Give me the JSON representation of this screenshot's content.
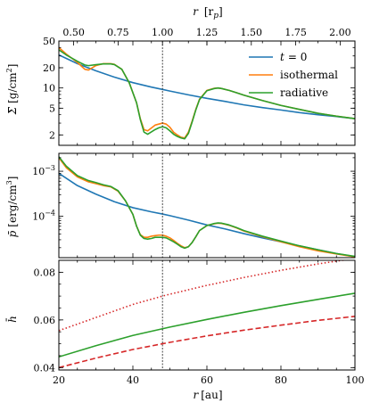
{
  "chart_data": {
    "type": "line",
    "top_axis": {
      "label": "r [r_p]",
      "label_main": "r",
      "label_unit": "[r",
      "label_sub": "p",
      "label_end": "]",
      "ticks": [
        0.5,
        0.75,
        1.0,
        1.25,
        1.5,
        1.75,
        2.0
      ],
      "tick_labels": [
        "0.50",
        "0.75",
        "1.00",
        "1.25",
        "1.50",
        "1.75",
        "2.00"
      ]
    },
    "x_axis": {
      "label": "r [au]",
      "xlim": [
        20,
        100
      ],
      "ticks": [
        20,
        40,
        60,
        80,
        100
      ],
      "tick_labels": [
        "20",
        "40",
        "60",
        "80",
        "100"
      ]
    },
    "planet_line_r_au": 48,
    "legend": {
      "placement": "top-right",
      "entries": [
        {
          "label": "t = 0",
          "label_italic": "t",
          "label_rest": "= 0",
          "color": "#1f77b4"
        },
        {
          "label": "isothermal",
          "color": "#ff7f0e"
        },
        {
          "label": "radiative",
          "color": "#2ca02c"
        }
      ]
    },
    "panels": [
      {
        "id": "sigma",
        "ylabel": "Σ̄ [g/cm²]",
        "ylabel_unit": "[g/cm",
        "ylabel_sup": "2",
        "yscale": "log",
        "ylim": [
          1.4,
          50
        ],
        "ticks": [
          2,
          5,
          10,
          20,
          50
        ],
        "tick_labels": [
          "2",
          "5",
          "10",
          "20",
          "50"
        ],
        "series": [
          {
            "name": "t = 0",
            "color": "#1f77b4",
            "dash": "solid",
            "x": [
              20,
              25,
              30,
              35,
              40,
              45,
              48,
              50,
              55,
              60,
              65,
              70,
              75,
              80,
              85,
              90,
              95,
              100
            ],
            "y": [
              31,
              23,
              18,
              14.5,
              12,
              10.3,
              9.5,
              9,
              7.9,
              7,
              6.3,
              5.6,
              5.1,
              4.7,
              4.3,
              4,
              3.75,
              3.5
            ]
          },
          {
            "name": "isothermal",
            "color": "#ff7f0e",
            "dash": "solid",
            "x": [
              20,
              22,
              25,
              27,
              28,
              30,
              32,
              34,
              35,
              37,
              39,
              41,
              42,
              43,
              44,
              46,
              47,
              48,
              49,
              50,
              51,
              52,
              53,
              54,
              55,
              56,
              57,
              58,
              60,
              62,
              63,
              64,
              66,
              68,
              70,
              75,
              80,
              85,
              90,
              95,
              100
            ],
            "y": [
              40,
              32,
              24,
              19,
              18.5,
              21.5,
              23,
              23,
              22.5,
              19,
              12,
              6,
              3.5,
              2.4,
              2.3,
              2.8,
              2.9,
              3.0,
              2.9,
              2.6,
              2.2,
              2,
              1.85,
              1.8,
              2.2,
              3.2,
              4.8,
              6.8,
              9.2,
              9.9,
              10,
              9.8,
              9.2,
              8.5,
              7.8,
              6.5,
              5.5,
              4.8,
              4.2,
              3.8,
              3.5
            ]
          },
          {
            "name": "radiative",
            "color": "#2ca02c",
            "dash": "solid",
            "x": [
              20,
              22,
              25,
              27,
              28,
              30,
              32,
              34,
              35,
              37,
              39,
              41,
              42,
              43,
              44,
              46,
              47,
              48,
              49,
              50,
              51,
              52,
              53,
              54,
              55,
              56,
              57,
              58,
              60,
              62,
              63,
              64,
              66,
              68,
              70,
              75,
              80,
              85,
              90,
              95,
              100
            ],
            "y": [
              37,
              31,
              25,
              22,
              21.5,
              22.2,
              22.8,
              22.8,
              22.3,
              19,
              12,
              6,
              3.4,
              2.2,
              2.05,
              2.4,
              2.55,
              2.65,
              2.55,
              2.3,
              2.05,
              1.9,
              1.8,
              1.75,
              2.1,
              3.1,
              4.7,
              6.7,
              9.1,
              9.8,
              10,
              9.8,
              9.2,
              8.5,
              7.8,
              6.5,
              5.5,
              4.8,
              4.2,
              3.8,
              3.5
            ]
          }
        ]
      },
      {
        "id": "pressure",
        "ylabel": "p̄ [erg/cm³]",
        "ylabel_unit": "[erg/cm",
        "ylabel_sup": "3",
        "yscale": "log",
        "ylim": [
          1.2e-05,
          0.0025
        ],
        "ticks": [
          0.0001,
          0.001
        ],
        "tick_labels": [
          "10^-4",
          "10^-3"
        ],
        "tick_base": "10",
        "tick_exps": [
          "−4",
          "−3"
        ],
        "series": [
          {
            "name": "t = 0",
            "color": "#1f77b4",
            "dash": "solid",
            "x": [
              20,
              25,
              30,
              35,
              40,
              45,
              48,
              50,
              55,
              60,
              65,
              70,
              75,
              80,
              85,
              90,
              95,
              100
            ],
            "y": [
              0.0009,
              0.00048,
              0.00031,
              0.00021,
              0.000155,
              0.000125,
              0.000112,
              0.000103,
              8.2e-05,
              6.4e-05,
              5.2e-05,
              4.1e-05,
              3.3e-05,
              2.7e-05,
              2.2e-05,
              1.8e-05,
              1.48e-05,
              1.25e-05
            ]
          },
          {
            "name": "isothermal",
            "color": "#ff7f0e",
            "dash": "solid",
            "x": [
              20,
              22,
              25,
              28,
              30,
              32,
              34,
              36,
              38,
              40,
              41,
              42,
              43,
              44,
              45,
              46,
              47,
              48,
              49,
              50,
              51,
              52,
              53,
              54,
              55,
              56,
              57,
              58,
              60,
              62,
              63,
              64,
              66,
              68,
              70,
              75,
              80,
              85,
              90,
              95,
              100
            ],
            "y": [
              0.002,
              0.0012,
              0.00075,
              0.00058,
              0.00053,
              0.00048,
              0.00045,
              0.00036,
              0.00022,
              0.00011,
              6e-05,
              3.9e-05,
              3.4e-05,
              3.4e-05,
              3.6e-05,
              3.7e-05,
              3.8e-05,
              3.8e-05,
              3.6e-05,
              3.3e-05,
              2.9e-05,
              2.5e-05,
              2.2e-05,
              2e-05,
              2.1e-05,
              2.6e-05,
              3.5e-05,
              4.8e-05,
              6.2e-05,
              6.8e-05,
              7e-05,
              6.9e-05,
              6.3e-05,
              5.5e-05,
              4.7e-05,
              3.5e-05,
              2.7e-05,
              2.1e-05,
              1.7e-05,
              1.45e-05,
              1.25e-05
            ]
          },
          {
            "name": "radiative",
            "color": "#2ca02c",
            "dash": "solid",
            "x": [
              20,
              22,
              25,
              28,
              30,
              32,
              34,
              36,
              38,
              40,
              41,
              42,
              43,
              44,
              45,
              46,
              47,
              48,
              49,
              50,
              51,
              52,
              53,
              54,
              55,
              56,
              57,
              58,
              60,
              62,
              63,
              64,
              66,
              68,
              70,
              75,
              80,
              85,
              90,
              95,
              100
            ],
            "y": [
              0.0021,
              0.0013,
              0.0008,
              0.00062,
              0.00056,
              0.0005,
              0.00046,
              0.00037,
              0.00022,
              0.00011,
              6e-05,
              3.8e-05,
              3.2e-05,
              3.1e-05,
              3.2e-05,
              3.4e-05,
              3.4e-05,
              3.4e-05,
              3.3e-05,
              3e-05,
              2.7e-05,
              2.4e-05,
              2.1e-05,
              1.95e-05,
              2.1e-05,
              2.6e-05,
              3.5e-05,
              4.8e-05,
              6.2e-05,
              6.9e-05,
              7.1e-05,
              7e-05,
              6.4e-05,
              5.6e-05,
              4.8e-05,
              3.6e-05,
              2.8e-05,
              2.2e-05,
              1.8e-05,
              1.48e-05,
              1.28e-05
            ]
          }
        ]
      },
      {
        "id": "aspect_ratio",
        "ylabel": "h̄",
        "yscale": "linear",
        "ylim": [
          0.039,
          0.085
        ],
        "ticks": [
          0.04,
          0.06,
          0.08
        ],
        "tick_labels": [
          "0.04",
          "0.06",
          "0.08"
        ],
        "series": [
          {
            "color": "#2ca02c",
            "dash": "solid",
            "x": [
              20,
              30,
              40,
              48,
              50,
              60,
              70,
              80,
              90,
              100
            ],
            "y": [
              0.0445,
              0.0492,
              0.0535,
              0.0563,
              0.057,
              0.0602,
              0.0632,
              0.066,
              0.0686,
              0.0712
            ]
          },
          {
            "color": "#d62728",
            "dash": "dotted",
            "x": [
              20,
              30,
              40,
              48,
              50,
              60,
              70,
              80,
              90,
              100
            ],
            "y": [
              0.0555,
              0.061,
              0.0665,
              0.07,
              0.0708,
              0.0745,
              0.0778,
              0.0808,
              0.0835,
              0.0858
            ]
          },
          {
            "color": "#d62728",
            "dash": "dashed",
            "x": [
              20,
              30,
              40,
              48,
              50,
              60,
              70,
              80,
              90,
              100
            ],
            "y": [
              0.04,
              0.044,
              0.0476,
              0.05,
              0.0506,
              0.0533,
              0.0557,
              0.0578,
              0.0598,
              0.0615
            ]
          }
        ]
      }
    ]
  }
}
